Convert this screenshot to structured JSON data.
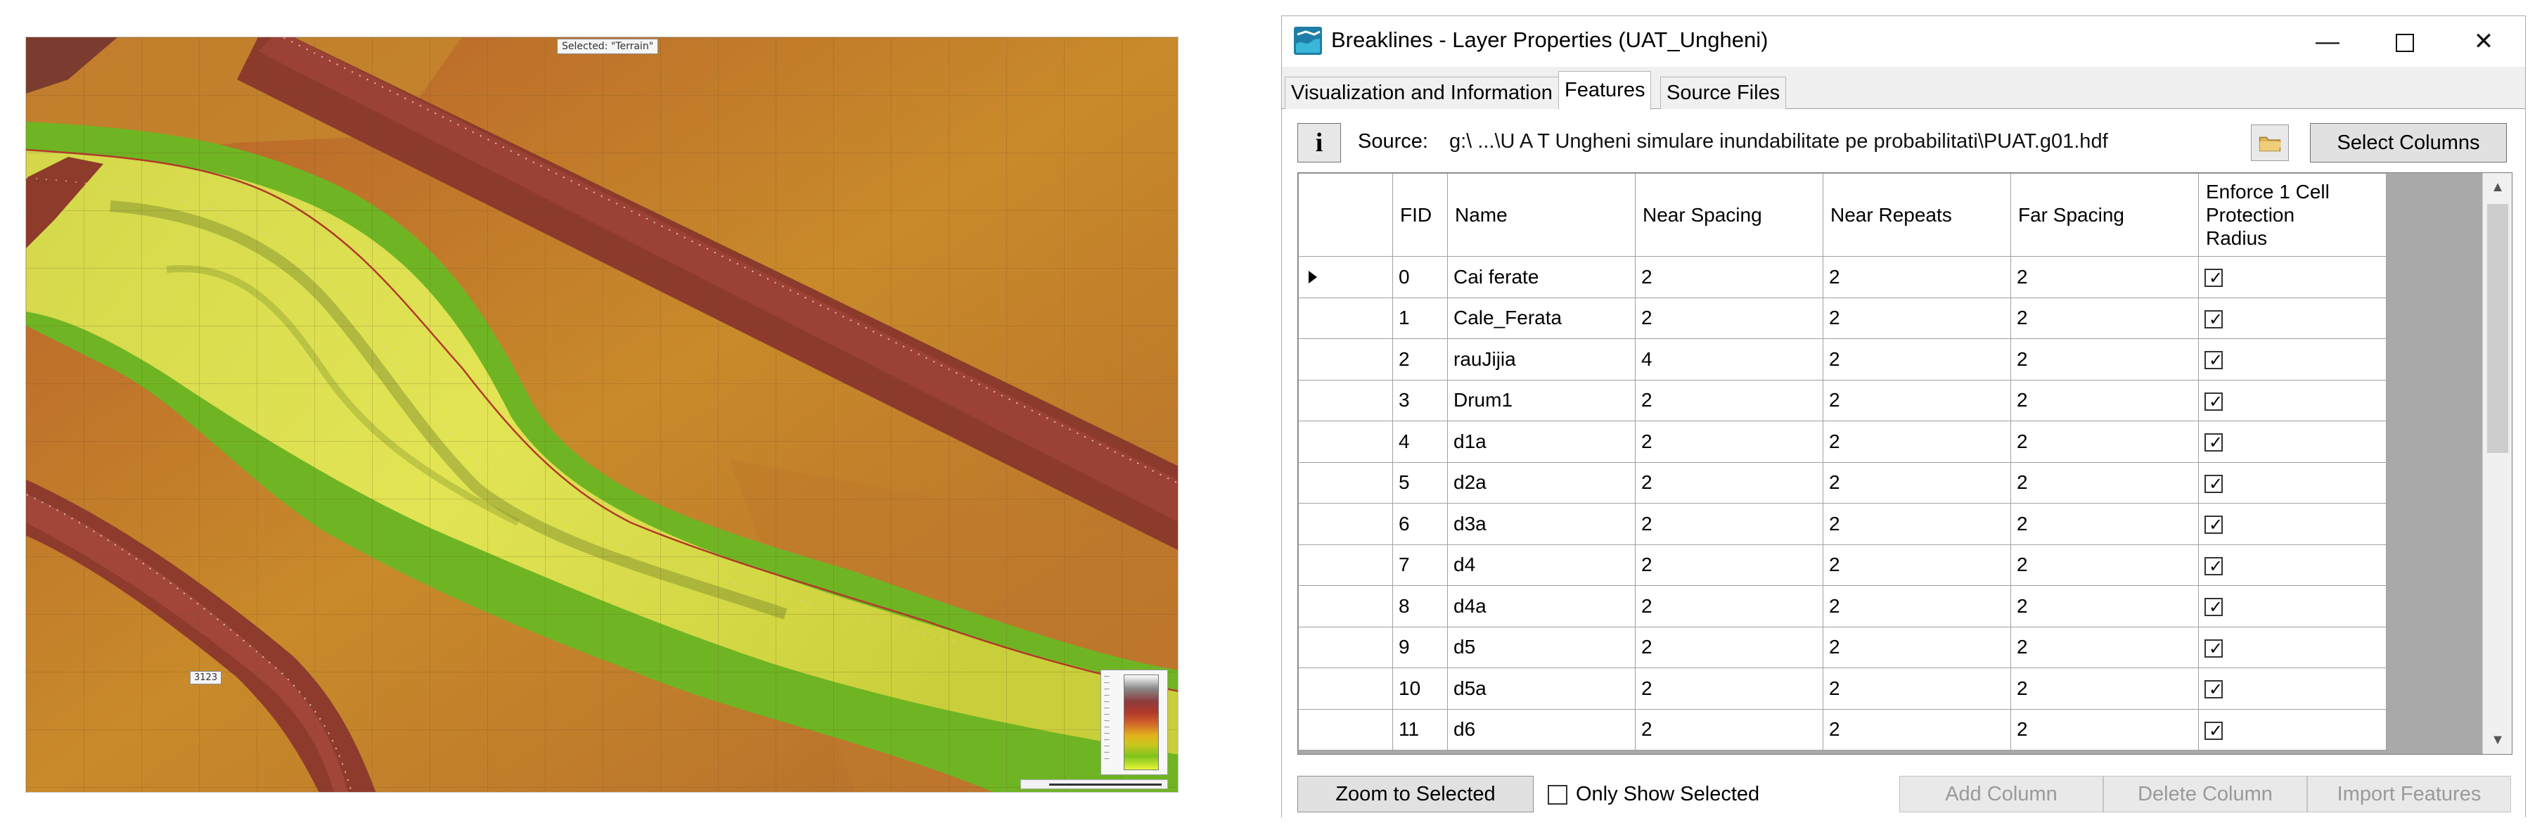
{
  "map": {
    "selected_label": "Selected: \"Terrain\"",
    "tag_label": "3123"
  },
  "dialog": {
    "title": "Breaklines - Layer Properties (UAT_Ungheni)",
    "window_controls": {
      "minimize": "—",
      "close": "✕"
    },
    "tabs": [
      {
        "label": "Visualization and Information",
        "active": false
      },
      {
        "label": "Features",
        "active": true
      },
      {
        "label": "Source Files",
        "active": false
      }
    ],
    "info_button": "i",
    "source_label": "Source:",
    "source_path": "g:\\ ...\\U A T Ungheni simulare inundabilitate pe probabilitati\\PUAT.g01.hdf",
    "select_columns_label": "Select Columns",
    "columns": [
      "FID",
      "Name",
      "Near Spacing",
      "Near Repeats",
      "Far Spacing",
      "Enforce 1 Cell Protection Radius"
    ],
    "enforce_header_lines": [
      "Enforce 1 Cell",
      "Protection",
      "Radius"
    ],
    "rows": [
      {
        "fid": "0",
        "name": "Cai ferate",
        "near_spacing": "2",
        "near_repeats": "2",
        "far_spacing": "2",
        "enforce": true,
        "current": true
      },
      {
        "fid": "1",
        "name": "Cale_Ferata",
        "near_spacing": "2",
        "near_repeats": "2",
        "far_spacing": "2",
        "enforce": true,
        "current": false
      },
      {
        "fid": "2",
        "name": "rauJijia",
        "near_spacing": "4",
        "near_repeats": "2",
        "far_spacing": "2",
        "enforce": true,
        "current": false
      },
      {
        "fid": "3",
        "name": "Drum1",
        "near_spacing": "2",
        "near_repeats": "2",
        "far_spacing": "2",
        "enforce": true,
        "current": false
      },
      {
        "fid": "4",
        "name": "d1a",
        "near_spacing": "2",
        "near_repeats": "2",
        "far_spacing": "2",
        "enforce": true,
        "current": false
      },
      {
        "fid": "5",
        "name": "d2a",
        "near_spacing": "2",
        "near_repeats": "2",
        "far_spacing": "2",
        "enforce": true,
        "current": false
      },
      {
        "fid": "6",
        "name": "d3a",
        "near_spacing": "2",
        "near_repeats": "2",
        "far_spacing": "2",
        "enforce": true,
        "current": false
      },
      {
        "fid": "7",
        "name": "d4",
        "near_spacing": "2",
        "near_repeats": "2",
        "far_spacing": "2",
        "enforce": true,
        "current": false
      },
      {
        "fid": "8",
        "name": "d4a",
        "near_spacing": "2",
        "near_repeats": "2",
        "far_spacing": "2",
        "enforce": true,
        "current": false
      },
      {
        "fid": "9",
        "name": "d5",
        "near_spacing": "2",
        "near_repeats": "2",
        "far_spacing": "2",
        "enforce": true,
        "current": false
      },
      {
        "fid": "10",
        "name": "d5a",
        "near_spacing": "2",
        "near_repeats": "2",
        "far_spacing": "2",
        "enforce": true,
        "current": false
      },
      {
        "fid": "11",
        "name": "d6",
        "near_spacing": "2",
        "near_repeats": "2",
        "far_spacing": "2",
        "enforce": true,
        "current": false
      }
    ],
    "buttons": {
      "zoom_to_selected": "Zoom to Selected",
      "only_show_selected": "Only Show Selected",
      "add_column": "Add Column",
      "delete_column": "Delete Column",
      "import_features": "Import Features"
    },
    "only_show_selected_checked": false
  },
  "icons": [
    "app-icon",
    "info-icon",
    "folder-icon",
    "row-pointer-icon",
    "check-icon",
    "scroll-up-icon",
    "scroll-down-icon"
  ]
}
